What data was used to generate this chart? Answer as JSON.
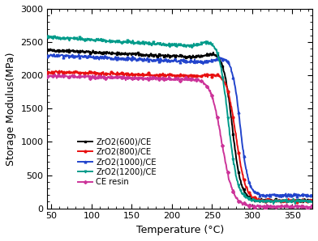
{
  "xlabel": "Temperature (°C)",
  "ylabel": "Storage Modulus(MPa)",
  "xlim": [
    45,
    375
  ],
  "ylim": [
    0,
    3000
  ],
  "xticks": [
    50,
    100,
    150,
    200,
    250,
    300,
    350
  ],
  "yticks": [
    0,
    500,
    1000,
    1500,
    2000,
    2500,
    3000
  ],
  "series": [
    {
      "label": "ZrO2(600)/CE",
      "color": "#000000",
      "marker": "s",
      "y_high": 2380,
      "y_low": 120,
      "inflection": 275,
      "k": 0.18,
      "slope": -0.6
    },
    {
      "label": "ZrO2(800)/CE",
      "color": "#e81010",
      "marker": "o",
      "y_high": 2050,
      "y_low": 115,
      "inflection": 280,
      "k": 0.17,
      "slope": -0.35
    },
    {
      "label": "ZrO2(1000)/CE",
      "color": "#2244cc",
      "marker": "^",
      "y_high": 2300,
      "y_low": 195,
      "inflection": 285,
      "k": 0.2,
      "slope": -0.55
    },
    {
      "label": "ZrO2(1200)/CE",
      "color": "#009b8a",
      "marker": "v",
      "y_high": 2570,
      "y_low": 110,
      "inflection": 270,
      "k": 0.17,
      "slope": -0.75
    },
    {
      "label": "CE resin",
      "color": "#cc3399",
      "marker": "D",
      "y_high": 1990,
      "y_low": 25,
      "inflection": 262,
      "k": 0.14,
      "slope": -0.3
    }
  ],
  "background_color": "#ffffff",
  "marker_size": 2.0,
  "line_width": 1.4,
  "noise_std": 12
}
